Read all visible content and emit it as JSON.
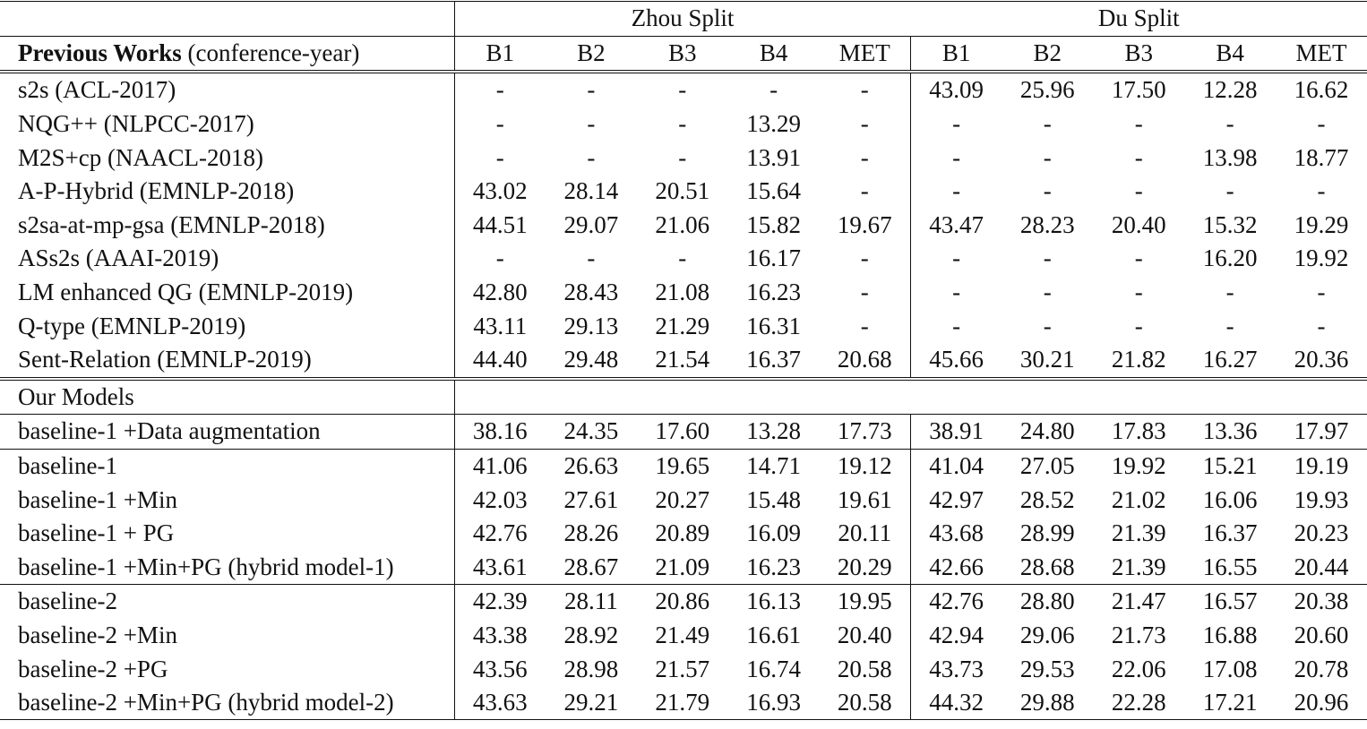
{
  "table": {
    "header": {
      "group_labels": [
        "Zhou Split",
        "Du Split"
      ],
      "name_col_bold": "Previous Works",
      "name_col_rest": " (conference-year)",
      "metrics": [
        "B1",
        "B2",
        "B3",
        "B4",
        "MET"
      ]
    },
    "previous_works": [
      {
        "name": "s2s (ACL-2017)",
        "zhou": [
          "-",
          "-",
          "-",
          "-",
          "-"
        ],
        "du": [
          "43.09",
          "25.96",
          "17.50",
          "12.28",
          "16.62"
        ],
        "bold_zhou": [],
        "bold_du": []
      },
      {
        "name": "NQG++ (NLPCC-2017)",
        "zhou": [
          "-",
          "-",
          "-",
          "13.29",
          "-"
        ],
        "du": [
          "-",
          "-",
          "-",
          "-",
          "-"
        ],
        "bold_zhou": [],
        "bold_du": []
      },
      {
        "name": "M2S+cp (NAACL-2018)",
        "zhou": [
          "-",
          "-",
          "-",
          "13.91",
          "-"
        ],
        "du": [
          "-",
          "-",
          "-",
          "13.98",
          "18.77"
        ],
        "bold_zhou": [],
        "bold_du": []
      },
      {
        "name": "A-P-Hybrid (EMNLP-2018)",
        "zhou": [
          "43.02",
          "28.14",
          "20.51",
          "15.64",
          "-"
        ],
        "du": [
          "-",
          "-",
          "-",
          "-",
          "-"
        ],
        "bold_zhou": [],
        "bold_du": []
      },
      {
        "name": "s2sa-at-mp-gsa (EMNLP-2018)",
        "zhou": [
          "44.51",
          "29.07",
          "21.06",
          "15.82",
          "19.67"
        ],
        "du": [
          "43.47",
          "28.23",
          "20.40",
          "15.32",
          "19.29"
        ],
        "bold_zhou": [
          0
        ],
        "bold_du": []
      },
      {
        "name": "ASs2s (AAAI-2019)",
        "zhou": [
          "-",
          "-",
          "-",
          "16.17",
          "-"
        ],
        "du": [
          "-",
          "-",
          "-",
          "16.20",
          "19.92"
        ],
        "bold_zhou": [],
        "bold_du": []
      },
      {
        "name": "LM enhanced QG (EMNLP-2019)",
        "zhou": [
          "42.80",
          "28.43",
          "21.08",
          "16.23",
          "-"
        ],
        "du": [
          "-",
          "-",
          "-",
          "-",
          "-"
        ],
        "bold_zhou": [],
        "bold_du": []
      },
      {
        "name": "Q-type (EMNLP-2019)",
        "zhou": [
          "43.11",
          "29.13",
          "21.29",
          "16.31",
          "-"
        ],
        "du": [
          "-",
          "-",
          "-",
          "-",
          "-"
        ],
        "bold_zhou": [],
        "bold_du": []
      },
      {
        "name": "Sent-Relation (EMNLP-2019)",
        "zhou": [
          "44.40",
          "29.48",
          "21.54",
          "16.37",
          "20.68"
        ],
        "du": [
          "45.66",
          "30.21",
          "21.82",
          "16.27",
          "20.36"
        ],
        "bold_zhou": [
          1,
          4
        ],
        "bold_du": [
          0,
          1
        ]
      }
    ],
    "our_models_label": "Our Models",
    "our_models_groups": [
      [
        {
          "name": "baseline-1 +Data augmentation",
          "zhou": [
            "38.16",
            "24.35",
            "17.60",
            "13.28",
            "17.73"
          ],
          "du": [
            "38.91",
            "24.80",
            "17.83",
            "13.36",
            "17.97"
          ],
          "bold_zhou": [],
          "bold_du": []
        }
      ],
      [
        {
          "name": "baseline-1",
          "zhou": [
            "41.06",
            "26.63",
            "19.65",
            "14.71",
            "19.12"
          ],
          "du": [
            "41.04",
            "27.05",
            "19.92",
            "15.21",
            "19.19"
          ],
          "bold_zhou": [],
          "bold_du": []
        },
        {
          "name": "baseline-1 +Min",
          "zhou": [
            "42.03",
            "27.61",
            "20.27",
            "15.48",
            "19.61"
          ],
          "du": [
            "42.97",
            "28.52",
            "21.02",
            "16.06",
            "19.93"
          ],
          "bold_zhou": [],
          "bold_du": []
        },
        {
          "name": "baseline-1 + PG",
          "zhou": [
            "42.76",
            "28.26",
            "20.89",
            "16.09",
            "20.11"
          ],
          "du": [
            "43.68",
            "28.99",
            "21.39",
            "16.37",
            "20.23"
          ],
          "bold_zhou": [],
          "bold_du": []
        },
        {
          "name": "baseline-1 +Min+PG (hybrid model-1)",
          "zhou": [
            "43.61",
            "28.67",
            "21.09",
            "16.23",
            "20.29"
          ],
          "du": [
            "42.66",
            "28.68",
            "21.39",
            "16.55",
            "20.44"
          ],
          "bold_zhou": [],
          "bold_du": []
        }
      ],
      [
        {
          "name": "baseline-2",
          "zhou": [
            "42.39",
            "28.11",
            "20.86",
            "16.13",
            "19.95"
          ],
          "du": [
            "42.76",
            "28.80",
            "21.47",
            "16.57",
            "20.38"
          ],
          "bold_zhou": [],
          "bold_du": []
        },
        {
          "name": "baseline-2 +Min",
          "zhou": [
            "43.38",
            "28.92",
            "21.49",
            "16.61",
            "20.40"
          ],
          "du": [
            "42.94",
            "29.06",
            "21.73",
            "16.88",
            "20.60"
          ],
          "bold_zhou": [],
          "bold_du": []
        },
        {
          "name": "baseline-2 +PG",
          "zhou": [
            "43.56",
            "28.98",
            "21.57",
            "16.74",
            "20.58"
          ],
          "du": [
            "43.73",
            "29.53",
            "22.06",
            "17.08",
            "20.78"
          ],
          "bold_zhou": [],
          "bold_du": []
        },
        {
          "name": "baseline-2 +Min+PG (hybrid model-2)",
          "zhou": [
            "43.63",
            "29.21",
            "21.79",
            "16.93",
            "20.58"
          ],
          "du": [
            "44.32",
            "29.88",
            "22.28",
            "17.21",
            "20.96"
          ],
          "bold_zhou": [
            2,
            3
          ],
          "bold_du": [
            2,
            3,
            4
          ]
        }
      ]
    ]
  }
}
